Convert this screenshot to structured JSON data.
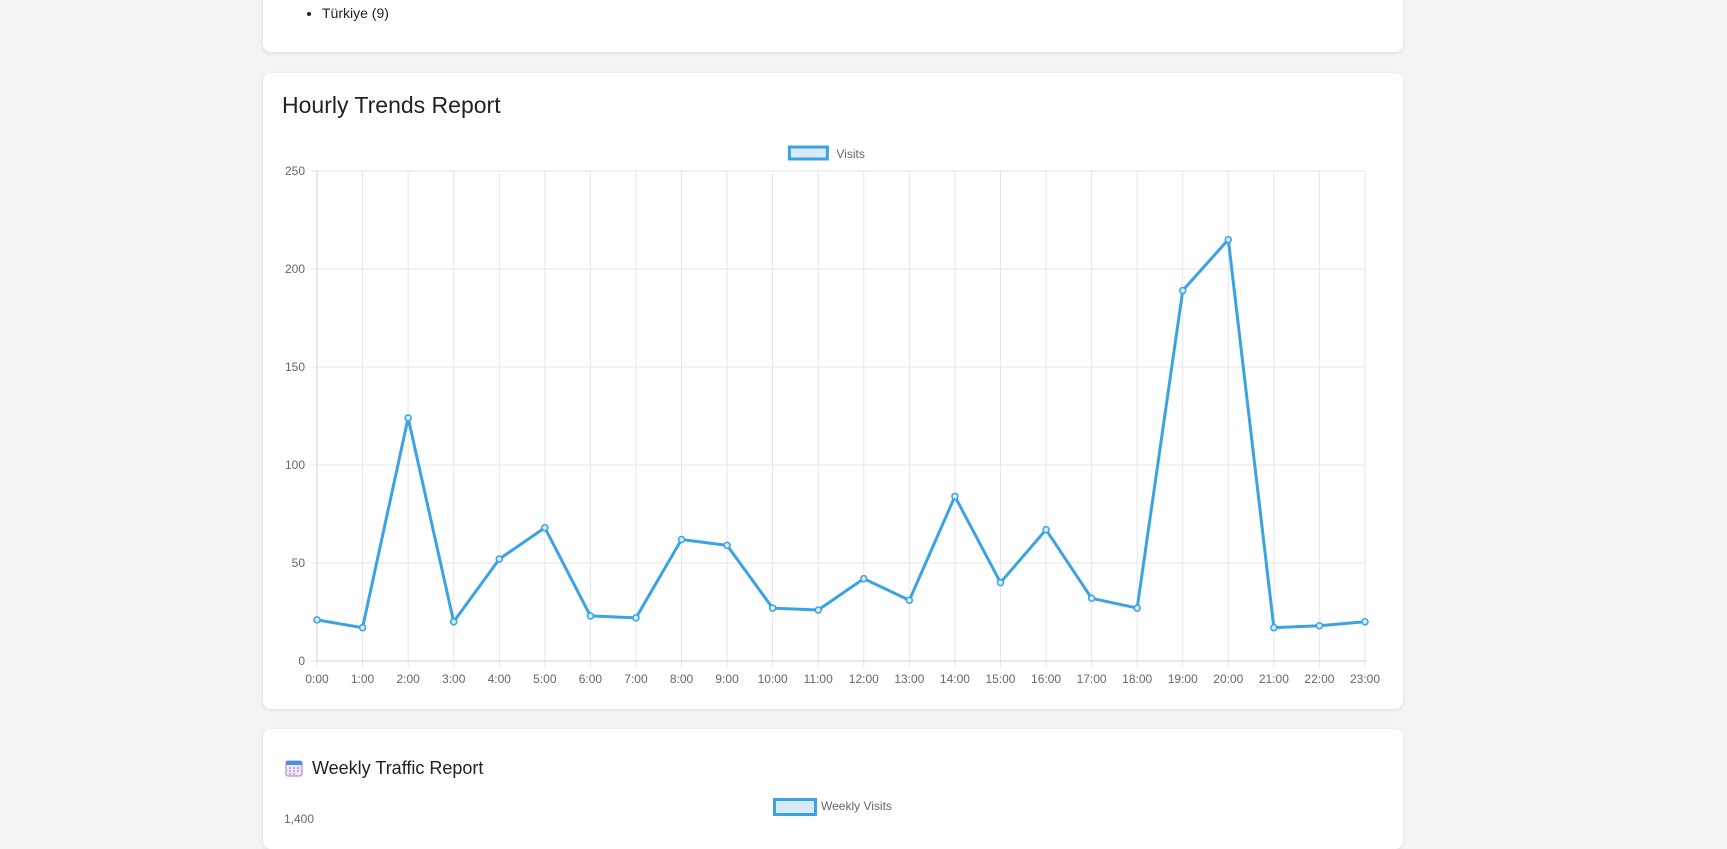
{
  "top_card": {
    "list_items": [
      "Türkiye (9)"
    ]
  },
  "hourly": {
    "title": "Hourly Trends Report"
  },
  "weekly": {
    "title": "Weekly Traffic Report",
    "icon": "calendar-icon",
    "legend": "Weekly Visits",
    "partial_tick": "1,400"
  },
  "colors": {
    "line": "#3ba3e3",
    "fill": "#d6eaf8",
    "grid": "#e6e6e6",
    "tick": "#666666"
  },
  "chart_data": {
    "type": "line",
    "title": "",
    "xlabel": "",
    "ylabel": "",
    "categories": [
      "0:00",
      "1:00",
      "2:00",
      "3:00",
      "4:00",
      "5:00",
      "6:00",
      "7:00",
      "8:00",
      "9:00",
      "10:00",
      "11:00",
      "12:00",
      "13:00",
      "14:00",
      "15:00",
      "16:00",
      "17:00",
      "18:00",
      "19:00",
      "20:00",
      "21:00",
      "22:00",
      "23:00"
    ],
    "series": [
      {
        "name": "Visits",
        "values": [
          21,
          17,
          124,
          20,
          52,
          68,
          23,
          22,
          62,
          59,
          27,
          26,
          42,
          31,
          84,
          40,
          67,
          32,
          27,
          189,
          215,
          17,
          18,
          20
        ]
      }
    ],
    "ylim": [
      0,
      250
    ],
    "yticks": [
      0,
      50,
      100,
      150,
      200,
      250
    ],
    "grid": true,
    "legend_position": "top-center"
  }
}
